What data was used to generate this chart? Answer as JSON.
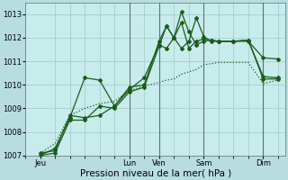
{
  "background_color": "#b8dde0",
  "plot_bg_color": "#c8ecec",
  "grid_color": "#a0c8cc",
  "line_color_dark": "#1a5c1a",
  "ylim": [
    1007,
    1013.5
  ],
  "yticks": [
    1007,
    1008,
    1009,
    1010,
    1011,
    1012,
    1013
  ],
  "xlabel": "Pression niveau de la mer( hPa )",
  "xlabel_fontsize": 7.5,
  "tick_fontsize": 6.0,
  "x_day_labels": [
    "Jeu",
    "Lun",
    "Ven",
    "Sam",
    "Dim"
  ],
  "x_day_positions": [
    0,
    24,
    32,
    44,
    60
  ],
  "xlim": [
    -2,
    66
  ],
  "n_points": 65,
  "series1_x": [
    0,
    4,
    8,
    12,
    16,
    20,
    24,
    28,
    32,
    34,
    36,
    38,
    40,
    42,
    44,
    46,
    48,
    52,
    56,
    60,
    64
  ],
  "series1_y": [
    1007.1,
    1007.2,
    1008.7,
    1008.6,
    1008.7,
    1009.1,
    1009.8,
    1010.3,
    1011.7,
    1011.55,
    1012.0,
    1013.1,
    1012.25,
    1011.7,
    1011.85,
    1011.9,
    1011.85,
    1011.85,
    1011.9,
    1010.25,
    1010.25
  ],
  "series2_x": [
    0,
    4,
    8,
    12,
    16,
    20,
    24,
    28,
    32,
    34,
    36,
    38,
    40,
    42,
    44,
    46,
    48,
    52,
    56,
    60,
    64
  ],
  "series2_y": [
    1007.0,
    1007.3,
    1008.6,
    1010.3,
    1010.2,
    1009.1,
    1009.9,
    1010.0,
    1011.85,
    1012.5,
    1012.0,
    1011.55,
    1011.85,
    1012.85,
    1012.05,
    1011.85,
    1011.85,
    1011.85,
    1011.85,
    1011.15,
    1011.1
  ],
  "series3_x": [
    0,
    4,
    8,
    12,
    16,
    20,
    24,
    28,
    32,
    34,
    36,
    38,
    40,
    42,
    44,
    46,
    48,
    52,
    56,
    60,
    64
  ],
  "series3_y": [
    1007.0,
    1007.1,
    1008.5,
    1008.5,
    1009.1,
    1009.0,
    1009.7,
    1009.9,
    1011.65,
    1012.5,
    1012.0,
    1012.65,
    1011.55,
    1011.85,
    1011.95,
    1011.9,
    1011.85,
    1011.85,
    1011.9,
    1010.35,
    1010.3
  ],
  "series4_x": [
    0,
    4,
    8,
    12,
    16,
    20,
    24,
    28,
    32,
    34,
    36,
    38,
    40,
    42,
    44,
    46,
    48,
    52,
    56,
    60,
    64
  ],
  "series4_y": [
    1007.1,
    1007.5,
    1008.7,
    1009.0,
    1009.2,
    1009.3,
    1009.75,
    1009.95,
    1010.1,
    1010.2,
    1010.25,
    1010.45,
    1010.55,
    1010.65,
    1010.85,
    1010.9,
    1010.95,
    1010.95,
    1010.95,
    1010.05,
    1010.2
  ],
  "vline_color": "#607070",
  "vline_positions": [
    24,
    32,
    44,
    60
  ]
}
